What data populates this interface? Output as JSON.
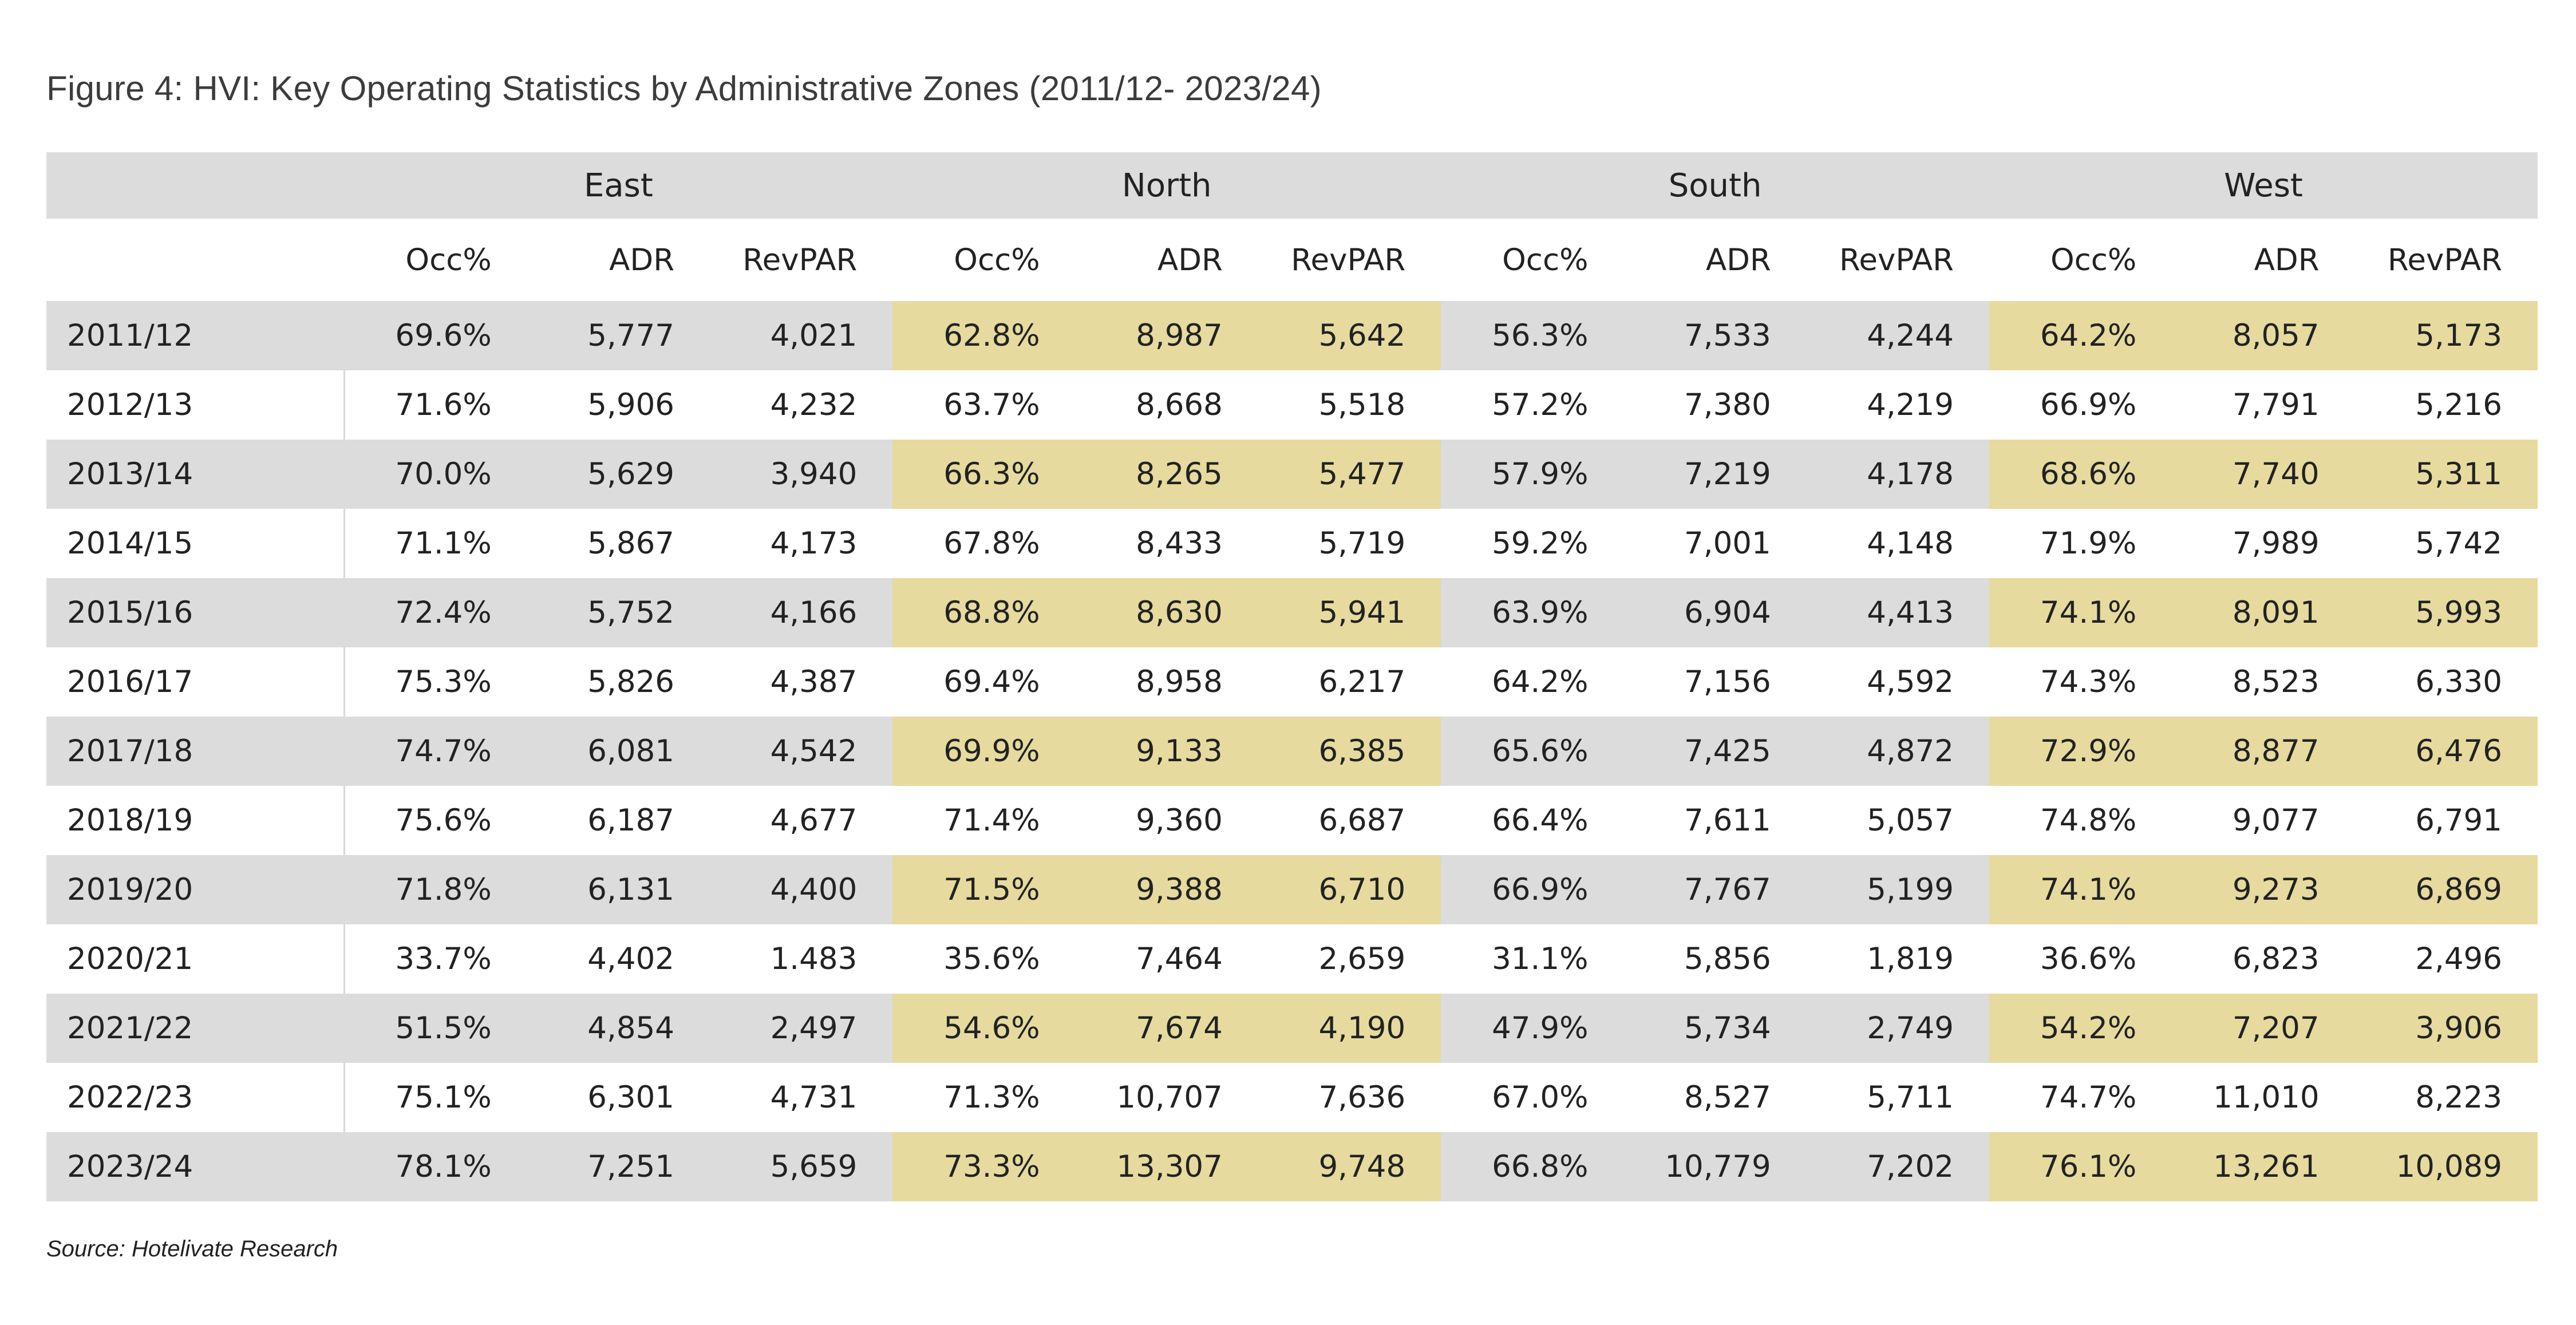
{
  "title": "Figure 4: HVI: Key Operating Statistics by Administrative Zones (2011/12- 2023/24)",
  "source": "Source: Hotelivate Research",
  "colors": {
    "header_gray": "#dcdcdc",
    "highlight_gold": "#e6da9e",
    "divider": "#d8d8d8"
  },
  "chart_data": {
    "type": "table",
    "title": "Figure 4: HVI: Key Operating Statistics by Administrative Zones (2011/12- 2023/24)",
    "zones": [
      "East",
      "North",
      "South",
      "West"
    ],
    "metrics": [
      "Occ%",
      "ADR",
      "RevPAR"
    ],
    "rows": [
      {
        "year": "2011/12",
        "cells": [
          "69.6%",
          "5,777",
          "4,021",
          "62.8%",
          "8,987",
          "5,642",
          "56.3%",
          "7,533",
          "4,244",
          "64.2%",
          "8,057",
          "5,173"
        ]
      },
      {
        "year": "2012/13",
        "cells": [
          "71.6%",
          "5,906",
          "4,232",
          "63.7%",
          "8,668",
          "5,518",
          "57.2%",
          "7,380",
          "4,219",
          "66.9%",
          "7,791",
          "5,216"
        ]
      },
      {
        "year": "2013/14",
        "cells": [
          "70.0%",
          "5,629",
          "3,940",
          "66.3%",
          "8,265",
          "5,477",
          "57.9%",
          "7,219",
          "4,178",
          "68.6%",
          "7,740",
          "5,311"
        ]
      },
      {
        "year": "2014/15",
        "cells": [
          "71.1%",
          "5,867",
          "4,173",
          "67.8%",
          "8,433",
          "5,719",
          "59.2%",
          "7,001",
          "4,148",
          "71.9%",
          "7,989",
          "5,742"
        ]
      },
      {
        "year": "2015/16",
        "cells": [
          "72.4%",
          "5,752",
          "4,166",
          "68.8%",
          "8,630",
          "5,941",
          "63.9%",
          "6,904",
          "4,413",
          "74.1%",
          "8,091",
          "5,993"
        ]
      },
      {
        "year": "2016/17",
        "cells": [
          "75.3%",
          "5,826",
          "4,387",
          "69.4%",
          "8,958",
          "6,217",
          "64.2%",
          "7,156",
          "4,592",
          "74.3%",
          "8,523",
          "6,330"
        ]
      },
      {
        "year": "2017/18",
        "cells": [
          "74.7%",
          "6,081",
          "4,542",
          "69.9%",
          "9,133",
          "6,385",
          "65.6%",
          "7,425",
          "4,872",
          "72.9%",
          "8,877",
          "6,476"
        ]
      },
      {
        "year": "2018/19",
        "cells": [
          "75.6%",
          "6,187",
          "4,677",
          "71.4%",
          "9,360",
          "6,687",
          "66.4%",
          "7,611",
          "5,057",
          "74.8%",
          "9,077",
          "6,791"
        ]
      },
      {
        "year": "2019/20",
        "cells": [
          "71.8%",
          "6,131",
          "4,400",
          "71.5%",
          "9,388",
          "6,710",
          "66.9%",
          "7,767",
          "5,199",
          "74.1%",
          "9,273",
          "6,869"
        ]
      },
      {
        "year": "2020/21",
        "cells": [
          "33.7%",
          "4,402",
          "1.483",
          "35.6%",
          "7,464",
          "2,659",
          "31.1%",
          "5,856",
          "1,819",
          "36.6%",
          "6,823",
          "2,496"
        ]
      },
      {
        "year": "2021/22",
        "cells": [
          "51.5%",
          "4,854",
          "2,497",
          "54.6%",
          "7,674",
          "4,190",
          "47.9%",
          "5,734",
          "2,749",
          "54.2%",
          "7,207",
          "3,906"
        ]
      },
      {
        "year": "2022/23",
        "cells": [
          "75.1%",
          "6,301",
          "4,731",
          "71.3%",
          "10,707",
          "7,636",
          "67.0%",
          "8,527",
          "5,711",
          "74.7%",
          "11,010",
          "8,223"
        ]
      },
      {
        "year": "2023/24",
        "cells": [
          "78.1%",
          "7,251",
          "5,659",
          "73.3%",
          "13,307",
          "9,748",
          "66.8%",
          "10,779",
          "7,202",
          "76.1%",
          "13,261",
          "10,089"
        ]
      }
    ]
  }
}
